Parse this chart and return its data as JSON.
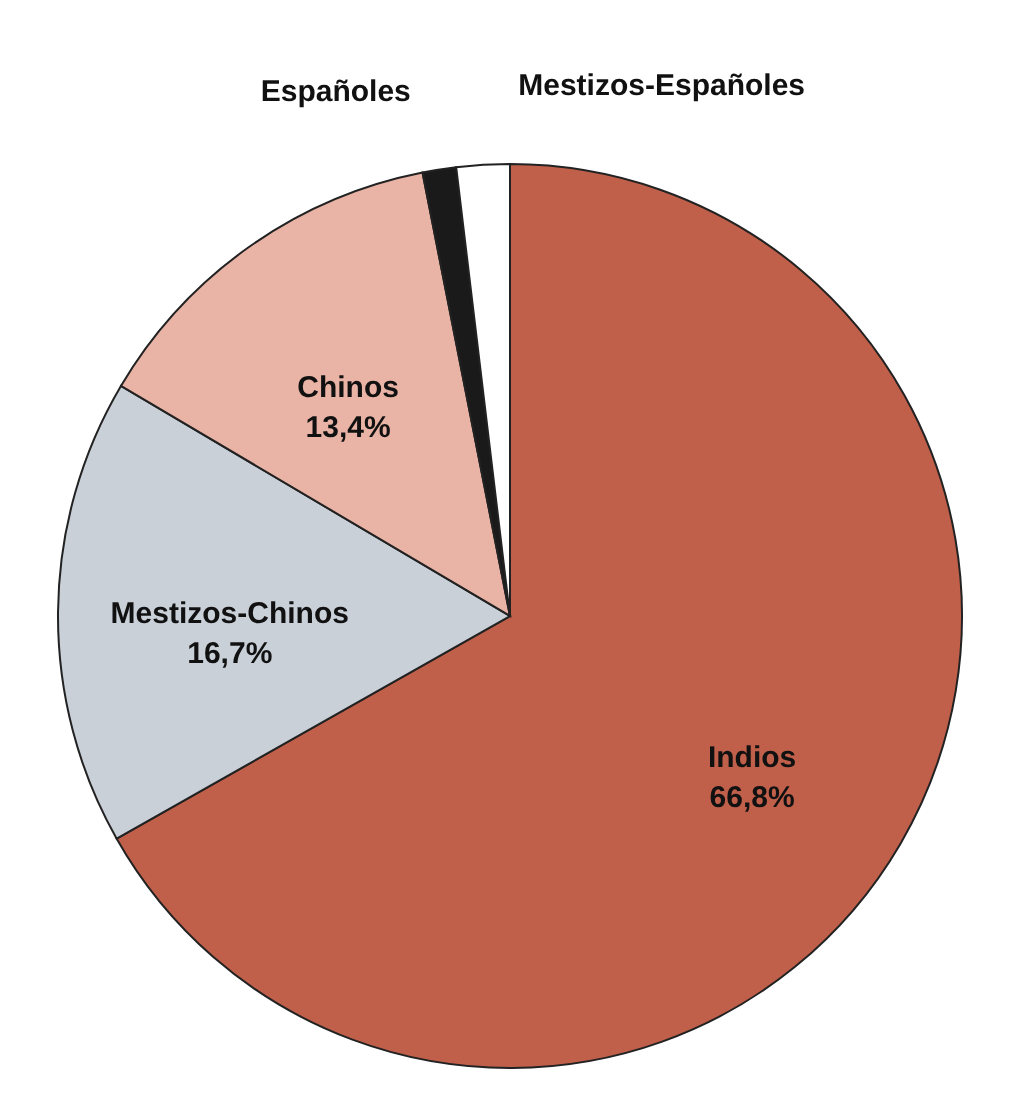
{
  "chart_data": {
    "type": "pie",
    "categories": [
      "Indios",
      "Mestizos-Chinos",
      "Chinos",
      "Españoles",
      "Mestizos-Españoles"
    ],
    "values": [
      66.8,
      16.7,
      13.4,
      1.2,
      1.9
    ],
    "colors": [
      "#c0604a",
      "#c9d0d8",
      "#e9b3a5",
      "#1a1a1a",
      "#ffffff"
    ],
    "value_labels": [
      "66,8%",
      "16,7%",
      "13,4%",
      null,
      null
    ],
    "legend": false
  }
}
